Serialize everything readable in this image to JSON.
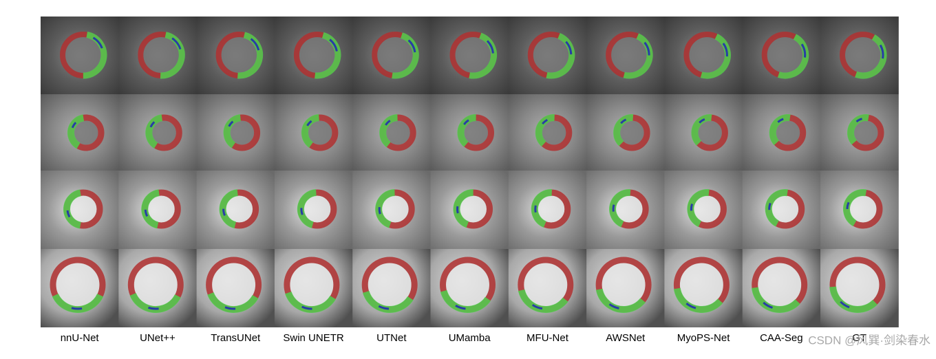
{
  "columns": [
    "nnU-Net",
    "UNet++",
    "TransUNet",
    "Swin UNETR",
    "UTNet",
    "UMamba",
    "MFU-Net",
    "AWSNet",
    "MyoPS-Net",
    "CAA-Seg",
    "GT"
  ],
  "watermark": "CSDN @风巽·剑染春水"
}
